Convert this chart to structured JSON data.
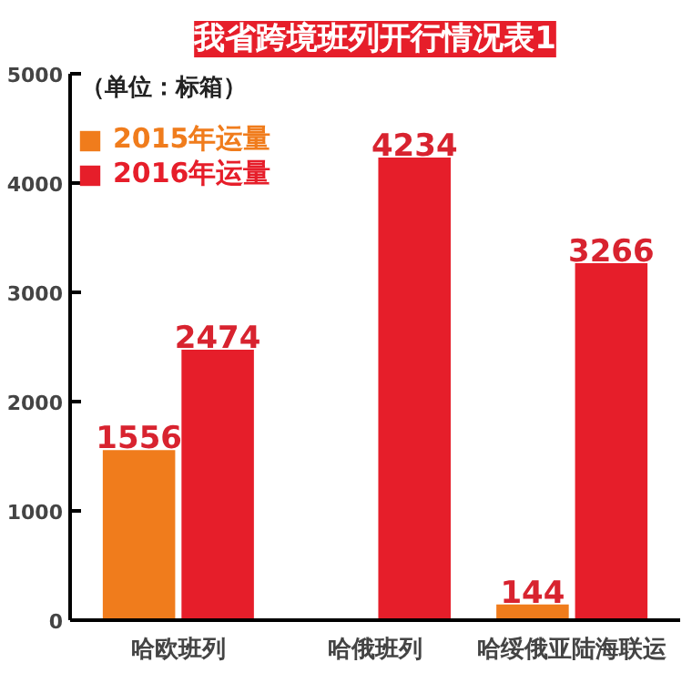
{
  "chart_data": {
    "type": "bar",
    "title": "我省跨境班列开行情况表1",
    "annotations": [
      "（单位：标箱）"
    ],
    "categories": [
      "哈欧班列",
      "哈俄班列",
      "哈绥俄亚陆海联运"
    ],
    "series": [
      {
        "name": "2015年运量",
        "color": "#f07c1c",
        "values": [
          1556,
          null,
          144
        ]
      },
      {
        "name": "2016年运量",
        "color": "#e61e2a",
        "values": [
          2474,
          4234,
          3266
        ]
      }
    ],
    "ylim": [
      0,
      5000
    ],
    "yticks": [
      0,
      1000,
      2000,
      3000,
      4000,
      5000
    ],
    "data_labels": true,
    "legend": "top left"
  }
}
